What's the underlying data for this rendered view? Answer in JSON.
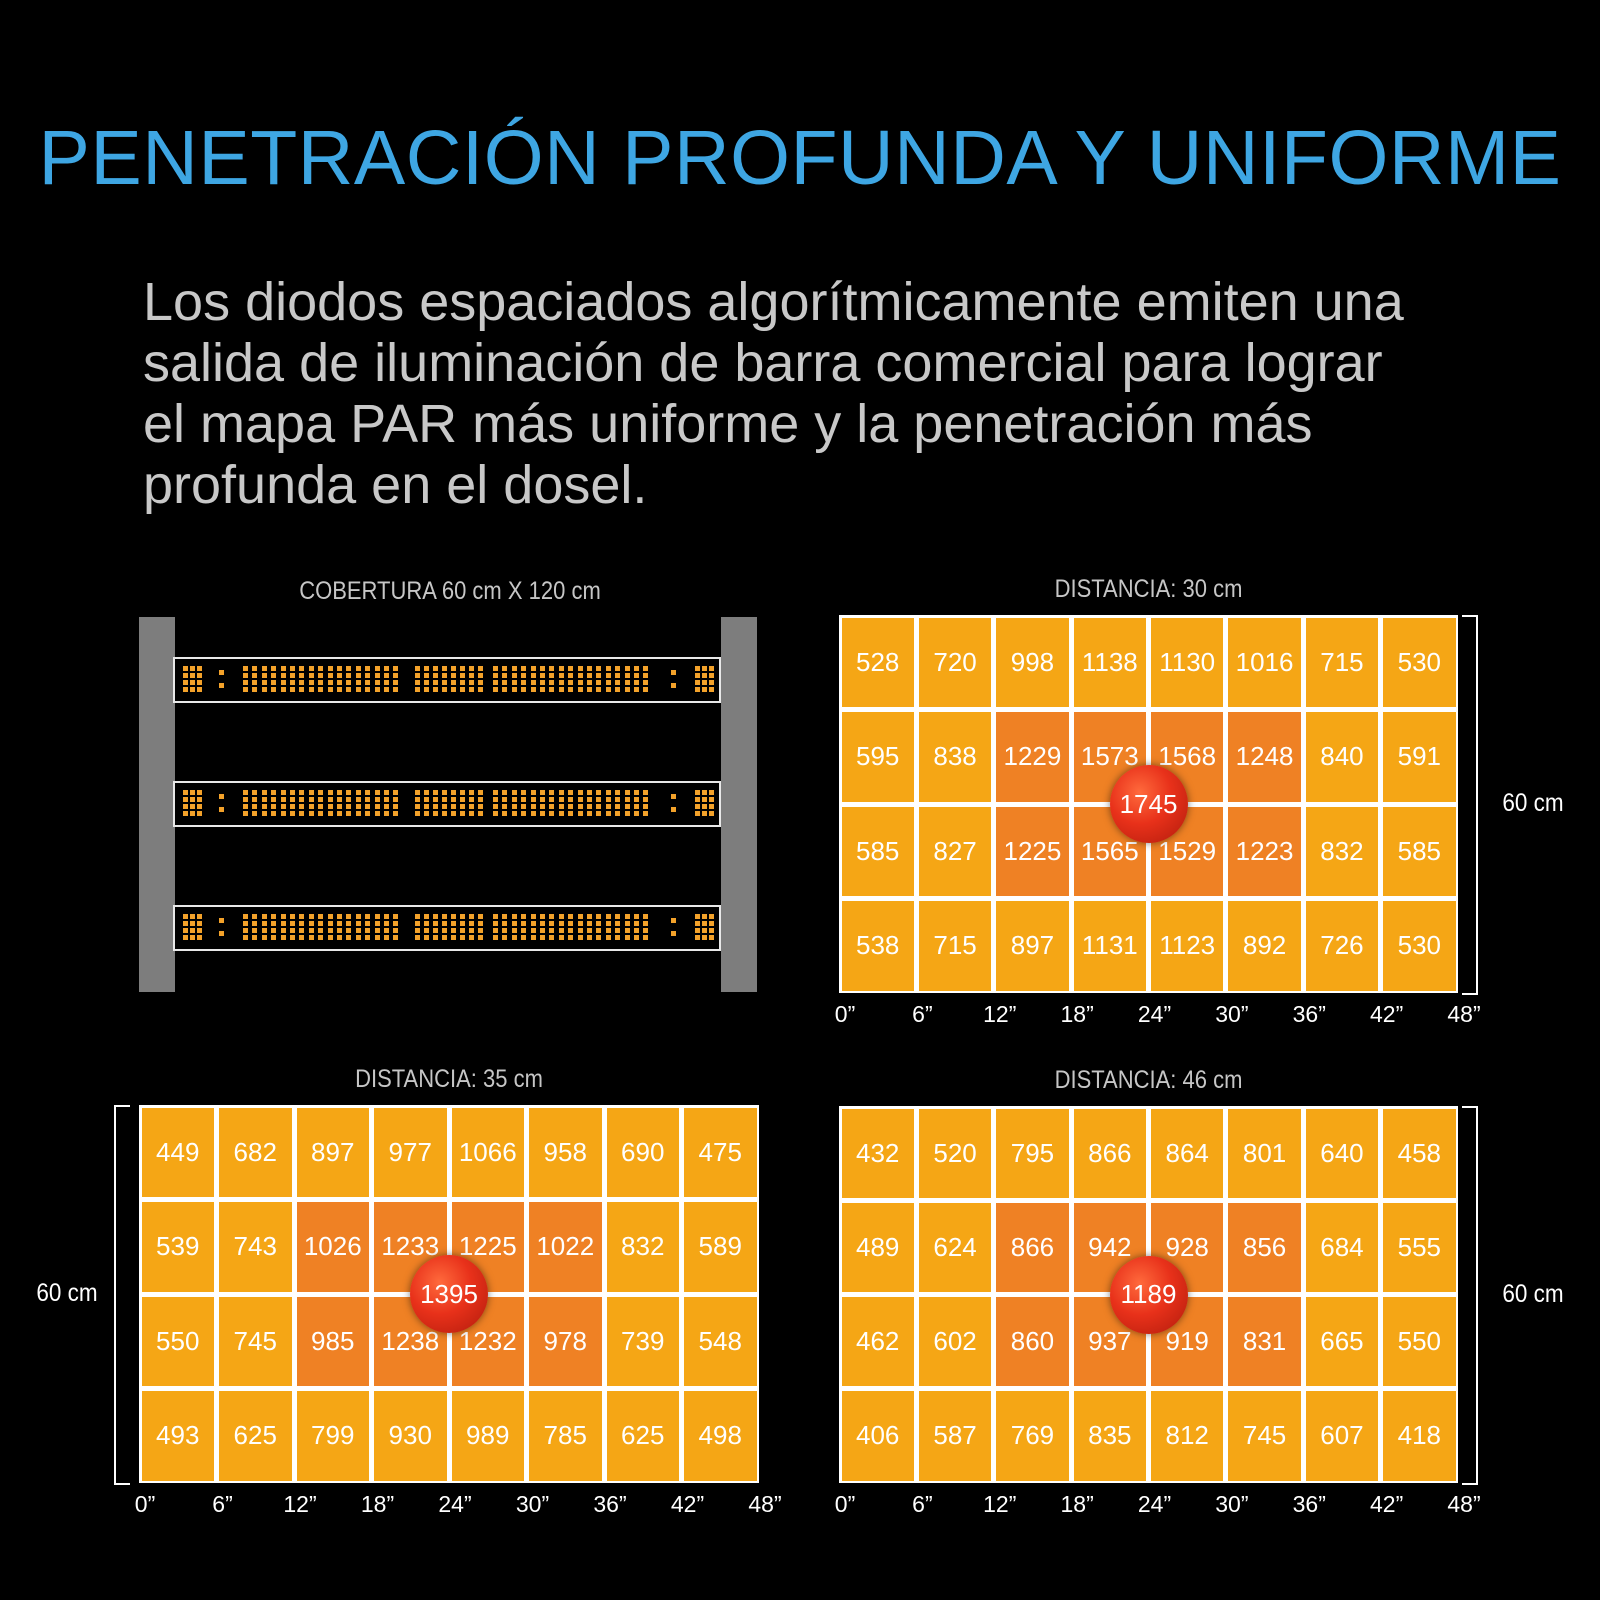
{
  "title": "PENETRACIÓN PROFUNDA Y UNIFORME",
  "description_lines": [
    "Los diodos espaciados algorítmicamente emiten una",
    "salida de iluminación de barra comercial para lograr",
    "el mapa PAR más uniforme y la penetración más",
    "profunda en el dosel."
  ],
  "coverage": {
    "label": "COBERTURA 60 cm X 120 cm",
    "bars": 3
  },
  "colors": {
    "cell": "#f5a615",
    "cell_center": "#ef8124",
    "peak": "#e8311a",
    "title": "#3ea6e3"
  },
  "chart_data": [
    {
      "type": "heatmap",
      "title": "DISTANCIA: 30 cm",
      "x_ticks": [
        "0”",
        "6”",
        "12”",
        "18”",
        "24”",
        "30”",
        "36”",
        "42”",
        "48”"
      ],
      "side_label": "60 cm",
      "side": "right",
      "values": [
        [
          "528",
          "720",
          "998",
          "1138",
          "1130",
          "1016",
          "715",
          "530"
        ],
        [
          "595",
          "838",
          "1229",
          "1573",
          "1568",
          "1248",
          "840",
          "591"
        ],
        [
          "585",
          "827",
          "1225",
          "1565",
          "1529",
          "1223",
          "832",
          "585"
        ],
        [
          "538",
          "715",
          "897",
          "1131",
          "1123",
          "892",
          "726",
          "530"
        ]
      ],
      "peak": "1745"
    },
    {
      "type": "heatmap",
      "title": "DISTANCIA: 35 cm",
      "x_ticks": [
        "0”",
        "6”",
        "12”",
        "18”",
        "24”",
        "30”",
        "36”",
        "42”",
        "48”"
      ],
      "side_label": "60 cm",
      "side": "left",
      "values": [
        [
          "449",
          "682",
          "897",
          "977",
          "1066",
          "958",
          "690",
          "475"
        ],
        [
          "539",
          "743",
          "1026",
          "1233",
          "1225",
          "1022",
          "832",
          "589"
        ],
        [
          "550",
          "745",
          "985",
          "1238",
          "1232",
          "978",
          "739",
          "548"
        ],
        [
          "493",
          "625",
          "799",
          "930",
          "989",
          "785",
          "625",
          "498"
        ]
      ],
      "peak": "1395"
    },
    {
      "type": "heatmap",
      "title": "DISTANCIA: 46 cm",
      "x_ticks": [
        "0”",
        "6”",
        "12”",
        "18”",
        "24”",
        "30”",
        "36”",
        "42”",
        "48”"
      ],
      "side_label": "60 cm",
      "side": "right",
      "values": [
        [
          "432",
          "520",
          "795",
          "866",
          "864",
          "801",
          "640",
          "458"
        ],
        [
          "489",
          "624",
          "866",
          "942",
          "928",
          "856",
          "684",
          "555"
        ],
        [
          "462",
          "602",
          "860",
          "937",
          "919",
          "831",
          "665",
          "550"
        ],
        [
          "406",
          "587",
          "769",
          "835",
          "812",
          "745",
          "607",
          "418"
        ]
      ],
      "peak": "1189"
    }
  ]
}
